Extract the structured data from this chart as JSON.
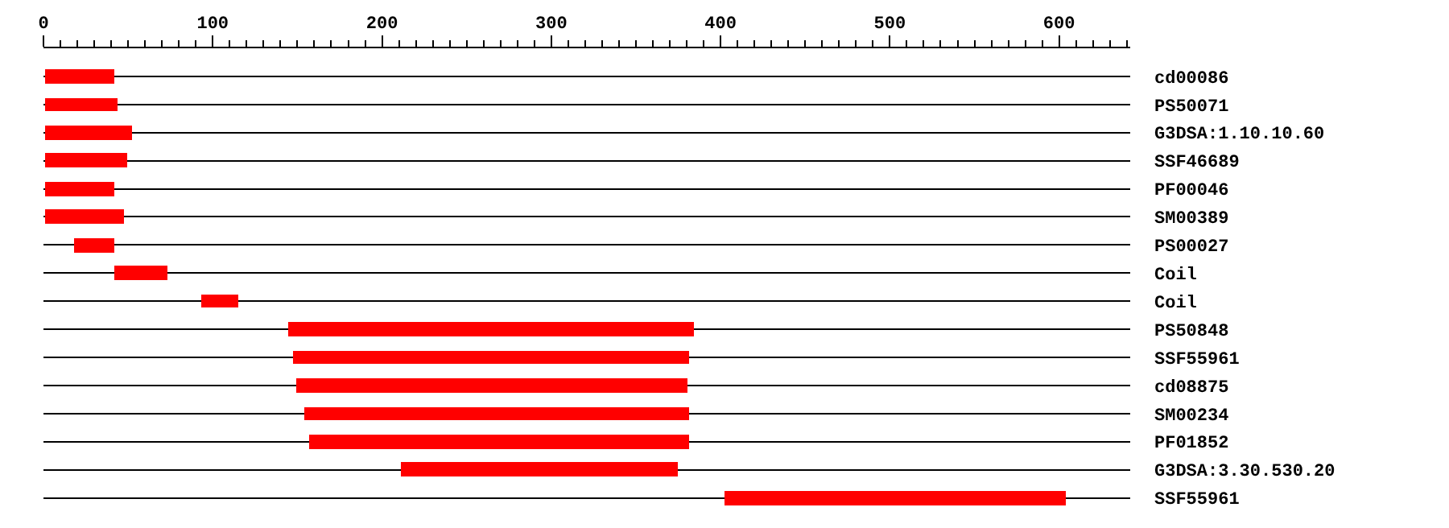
{
  "chart_data": {
    "type": "bar",
    "orientation": "horizontal",
    "categories": [
      "cd00086",
      "PS50071",
      "G3DSA:1.10.10.60",
      "SSF46689",
      "PF00046",
      "SM00389",
      "PS00027",
      "Coil",
      "Coil",
      "PS50848",
      "SSF55961",
      "cd08875",
      "SM00234",
      "PF01852",
      "G3DSA:3.30.530.20",
      "SSF55961"
    ],
    "base": [
      1,
      1,
      1,
      1,
      1,
      1,
      18,
      42,
      93,
      145,
      147,
      149,
      154,
      157,
      211,
      402
    ],
    "values": [
      41,
      43,
      51,
      48,
      41,
      47,
      24,
      31,
      22,
      239,
      234,
      231,
      227,
      224,
      164,
      202
    ],
    "color": "#ff0000",
    "xlim": [
      0,
      642
    ],
    "xticks": [
      0,
      {
        "value": 10,
        "label": null
      },
      {
        "value": 20,
        "label": null
      },
      {
        "value": 30,
        "label": null
      },
      {
        "value": 40,
        "label": null
      },
      {
        "value": 50,
        "label": null
      },
      {
        "value": 60,
        "label": null
      },
      {
        "value": 70,
        "label": null
      },
      {
        "value": 80,
        "label": null
      },
      {
        "value": 90,
        "label": null
      },
      100,
      {
        "value": 110,
        "label": null
      },
      {
        "value": 120,
        "label": null
      },
      {
        "value": 130,
        "label": null
      },
      {
        "value": 140,
        "label": null
      },
      {
        "value": 150,
        "label": null
      },
      {
        "value": 160,
        "label": null
      },
      {
        "value": 170,
        "label": null
      },
      {
        "value": 180,
        "label": null
      },
      {
        "value": 190,
        "label": null
      },
      200,
      {
        "value": 210,
        "label": null
      },
      {
        "value": 220,
        "label": null
      },
      {
        "value": 230,
        "label": null
      },
      {
        "value": 240,
        "label": null
      },
      {
        "value": 250,
        "label": null
      },
      {
        "value": 260,
        "label": null
      },
      {
        "value": 270,
        "label": null
      },
      {
        "value": 280,
        "label": null
      },
      {
        "value": 290,
        "label": null
      },
      300,
      {
        "value": 310,
        "label": null
      },
      {
        "value": 320,
        "label": null
      },
      {
        "value": 330,
        "label": null
      },
      {
        "value": 340,
        "label": null
      },
      {
        "value": 350,
        "label": null
      },
      {
        "value": 360,
        "label": null
      },
      {
        "value": 370,
        "label": null
      },
      {
        "value": 380,
        "label": null
      },
      {
        "value": 390,
        "label": null
      },
      400,
      {
        "value": 410,
        "label": null
      },
      {
        "value": 420,
        "label": null
      },
      {
        "value": 430,
        "label": null
      },
      {
        "value": 440,
        "label": null
      },
      {
        "value": 450,
        "label": null
      },
      {
        "value": 460,
        "label": null
      },
      {
        "value": 470,
        "label": null
      },
      {
        "value": 480,
        "label": null
      },
      {
        "value": 490,
        "label": null
      },
      500,
      {
        "value": 510,
        "label": null
      },
      {
        "value": 520,
        "label": null
      },
      {
        "value": 530,
        "label": null
      },
      {
        "value": 540,
        "label": null
      },
      {
        "value": 550,
        "label": null
      },
      {
        "value": 560,
        "label": null
      },
      {
        "value": 570,
        "label": null
      },
      {
        "value": 580,
        "label": null
      },
      {
        "value": 590,
        "label": null
      },
      600,
      {
        "value": 610,
        "label": null
      },
      {
        "value": 620,
        "label": null
      },
      {
        "value": 630,
        "label": null
      },
      {
        "value": 640,
        "label": null
      }
    ],
    "grid": "y"
  }
}
